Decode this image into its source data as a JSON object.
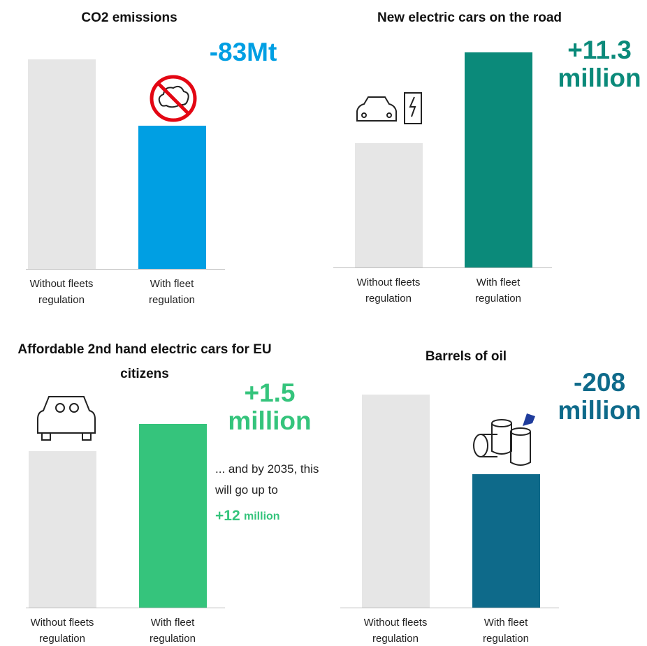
{
  "chart_data": [
    {
      "type": "bar",
      "title": "CO2 emissions",
      "categories": [
        "Without fleets regulation",
        "With fleet regulation"
      ],
      "values": [
        262,
        179
      ],
      "colors": [
        "#e6e6e6",
        "#009fe3"
      ],
      "ylim": [
        0,
        288
      ],
      "annotation": "-83Mt",
      "annotation_color": "#009fe3"
    },
    {
      "type": "bar",
      "title": "New electric cars on the road",
      "categories": [
        "Without fleets regulation",
        "With fleet regulation"
      ],
      "values": [
        15.5,
        26.8
      ],
      "colors": [
        "#e6e6e6",
        "#0b8a7a"
      ],
      "ylim": [
        0,
        28.5
      ],
      "annotation": "+11.3 million",
      "annotation_color": "#0b8a7a"
    },
    {
      "type": "bar",
      "title": "Affordable 2nd hand electric cars for EU citizens",
      "categories": [
        "Without fleets regulation",
        "With fleet regulation"
      ],
      "values": [
        8.4,
        9.9
      ],
      "colors": [
        "#e6e6e6",
        "#35c47c"
      ],
      "ylim": [
        0,
        12.4
      ],
      "annotation": "+1.5 million",
      "annotation_color": "#35c47c",
      "note": "... and by 2035, this will go up to",
      "note_value": "+12",
      "note_unit": "million"
    },
    {
      "type": "bar",
      "title": "Barrels of oil",
      "categories": [
        "Without fleets regulation",
        "With fleet regulation"
      ],
      "values": [
        557,
        349
      ],
      "colors": [
        "#e6e6e6",
        "#0e6a8a"
      ],
      "ylim": [
        0,
        602
      ],
      "annotation": "-208 million",
      "annotation_color": "#0e6a8a"
    }
  ]
}
